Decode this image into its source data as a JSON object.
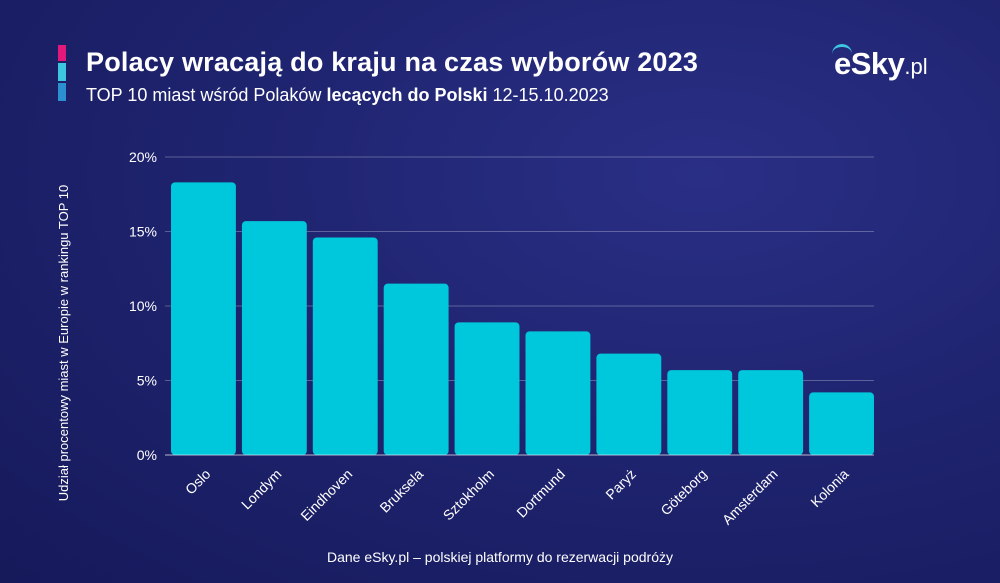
{
  "header": {
    "title": "Polacy wracają do kraju na czas wyborów 2023",
    "subtitle_pre": "TOP 10 miast wśród Polaków ",
    "subtitle_bold": "lecących do Polski",
    "subtitle_post": " 12-15.10.2023"
  },
  "logo": {
    "main": "eSky",
    "suffix": ".pl"
  },
  "footer": {
    "source": "Dane eSky.pl – polskiej platformy do rezerwacji podróży"
  },
  "colors": {
    "bar": "#00c8dc",
    "accent_pink": "#e2197a",
    "accent_cyan": "#3ec6e0",
    "accent_blue": "#2b8fd0"
  },
  "chart_data": {
    "type": "bar",
    "title": "Polacy wracają do kraju na czas wyborów 2023",
    "subtitle": "TOP 10 miast wśród Polaków lecących do Polski 12-15.10.2023",
    "xlabel": "",
    "ylabel": "Udział procentowy miast w Europie w rankingu TOP 10",
    "categories": [
      "Oslo",
      "Londym",
      "Eindhoven",
      "Bruksela",
      "Sztokholm",
      "Dortmund",
      "Paryż",
      "Göteborg",
      "Amsterdam",
      "Kolonia"
    ],
    "values": [
      18.3,
      15.7,
      14.6,
      11.5,
      8.9,
      8.3,
      6.8,
      5.7,
      5.7,
      4.2
    ],
    "unit": "%",
    "ylim": [
      0,
      20
    ],
    "yticks": [
      "0%",
      "5%",
      "10%",
      "15%",
      "20%"
    ],
    "grid": true,
    "legend": "none"
  }
}
